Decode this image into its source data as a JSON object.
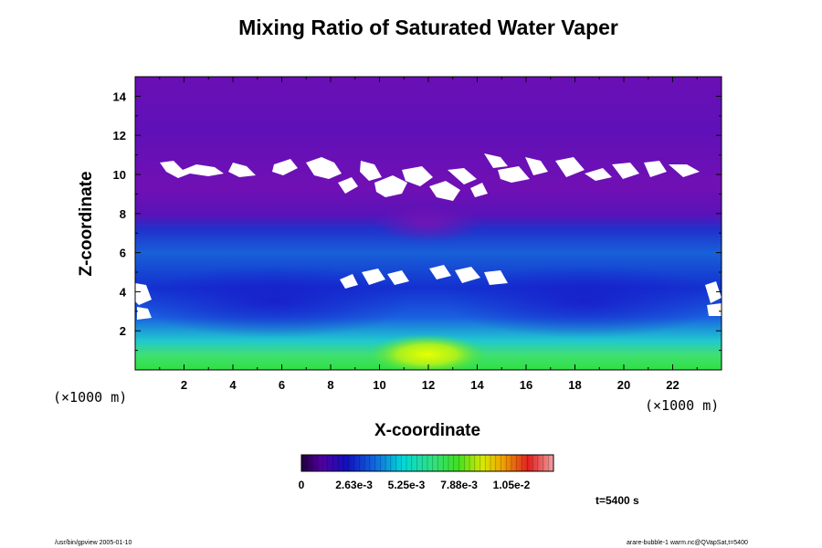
{
  "chart_data": {
    "type": "heatmap",
    "title": "Mixing Ratio of Saturated Water Vaper",
    "xlabel": "X-coordinate",
    "ylabel": "Z-coordinate",
    "x_unit": "(×1000 m)",
    "z_unit": "(×1000 m)",
    "xlim": [
      0,
      24
    ],
    "ylim": [
      0,
      15
    ],
    "x_ticks": [
      2,
      4,
      6,
      8,
      10,
      12,
      14,
      16,
      18,
      20,
      22
    ],
    "y_ticks": [
      2,
      4,
      6,
      8,
      10,
      12,
      14
    ],
    "colorbar": {
      "min": 0,
      "max": 0.0126,
      "tick_values": [
        0,
        0.00263,
        0.00525,
        0.00788,
        0.0105
      ],
      "tick_labels": [
        "0",
        "2.63e-3",
        "5.25e-3",
        "7.88e-3",
        "1.05e-2"
      ]
    },
    "time_label": "t=5400 s",
    "colors": {
      "low": "#5a00b4",
      "mid_low": "#1c1ccc",
      "mid": "#00c8c8",
      "mid_high": "#40e040",
      "high": "#ffee00",
      "top": "#e02020"
    }
  },
  "footer": {
    "left": "/usr/bin/gpview 2005-01-10",
    "right": "arare-bubble-1 warm.nc@QVapSat,t=5400"
  }
}
